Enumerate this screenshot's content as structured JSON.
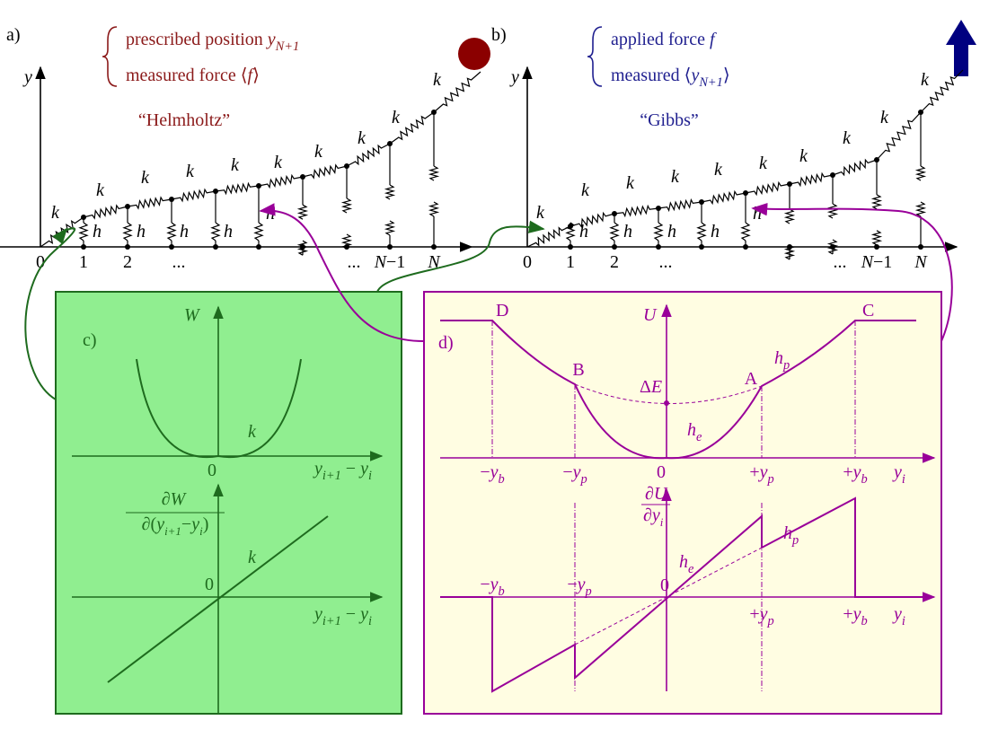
{
  "panel_a": {
    "label": "a)",
    "axis_label": [
      {
        "i": "y"
      }
    ],
    "legend": [
      [
        {
          "t": "prescribed position "
        },
        {
          "i": "y"
        },
        {
          "sub": "N+1"
        }
      ],
      [
        {
          "t": "measured force ⟨"
        },
        {
          "i": "f"
        },
        {
          "t": "⟩"
        }
      ]
    ],
    "title": "“Helmholtz”",
    "k_labels": [
      "k",
      "k",
      "k",
      "k",
      "k",
      "k",
      "k",
      "k",
      "k",
      "k"
    ],
    "h_labels": [
      "h",
      "h",
      "h",
      "h",
      "h"
    ],
    "ticks": [
      [
        {
          "t": "0"
        }
      ],
      [
        {
          "t": "1"
        }
      ],
      [
        {
          "t": "2"
        }
      ],
      [
        {
          "t": "..."
        }
      ],
      [
        {
          "t": "..."
        }
      ],
      [
        {
          "i": "N"
        },
        {
          "t": "−1"
        }
      ],
      [
        {
          "i": "N"
        }
      ]
    ]
  },
  "panel_b": {
    "label": "b)",
    "axis_label": [
      {
        "i": "y"
      }
    ],
    "legend": [
      [
        {
          "t": "applied force "
        },
        {
          "i": "f"
        }
      ],
      [
        {
          "t": "measured ⟨"
        },
        {
          "i": "y"
        },
        {
          "sub": "N+1"
        },
        {
          "t": "⟩"
        }
      ]
    ],
    "title": "“Gibbs”",
    "k_labels": [
      "k",
      "k",
      "k",
      "k",
      "k",
      "k",
      "k",
      "k",
      "k",
      "k"
    ],
    "h_labels": [
      "h",
      "h",
      "h",
      "h",
      "h"
    ],
    "ticks": [
      [
        {
          "t": "0"
        }
      ],
      [
        {
          "t": "1"
        }
      ],
      [
        {
          "t": "2"
        }
      ],
      [
        {
          "t": "..."
        }
      ],
      [
        {
          "t": "..."
        }
      ],
      [
        {
          "i": "N"
        },
        {
          "t": "−1"
        }
      ],
      [
        {
          "i": "N"
        }
      ]
    ]
  },
  "panel_c": {
    "label": "c)",
    "upper": {
      "axis_label": [
        {
          "i": "W"
        }
      ],
      "curve_label": [
        {
          "i": "k"
        }
      ],
      "origin": "0",
      "x_label": [
        {
          "i": "y"
        },
        {
          "sub": "i+1"
        },
        {
          "t": " − "
        },
        {
          "i": "y"
        },
        {
          "sub": "i"
        }
      ]
    },
    "lower": {
      "axis_num": [
        {
          "t": "∂"
        },
        {
          "i": "W"
        }
      ],
      "axis_den": [
        {
          "t": "∂("
        },
        {
          "i": "y"
        },
        {
          "sub": "i+1"
        },
        {
          "t": "−"
        },
        {
          "i": "y"
        },
        {
          "sub": "i"
        },
        {
          "t": ")"
        }
      ],
      "curve_label": [
        {
          "i": "k"
        }
      ],
      "origin": "0",
      "x_label": [
        {
          "i": "y"
        },
        {
          "sub": "i+1"
        },
        {
          "t": " − "
        },
        {
          "i": "y"
        },
        {
          "sub": "i"
        }
      ]
    }
  },
  "panel_d": {
    "label": "d)",
    "upper": {
      "axis_label": [
        {
          "i": "U"
        }
      ],
      "points": [
        "D",
        "C",
        "B",
        "A"
      ],
      "barrier": [
        {
          "t": "Δ"
        },
        {
          "i": "E"
        }
      ],
      "hp": [
        {
          "i": "h"
        },
        {
          "sub": "p"
        }
      ],
      "he": [
        {
          "i": "h"
        },
        {
          "sub": "e"
        }
      ],
      "origin": "0",
      "ticks": [
        [
          {
            "t": "−"
          },
          {
            "i": "y"
          },
          {
            "sub": "b"
          }
        ],
        [
          {
            "t": "−"
          },
          {
            "i": "y"
          },
          {
            "sub": "p"
          }
        ],
        [
          {
            "t": "+"
          },
          {
            "i": "y"
          },
          {
            "sub": "p"
          }
        ],
        [
          {
            "t": "+"
          },
          {
            "i": "y"
          },
          {
            "sub": "b"
          }
        ]
      ],
      "x_label": [
        {
          "i": "y"
        },
        {
          "sub": "i"
        }
      ]
    },
    "lower": {
      "axis_num": [
        {
          "t": "∂"
        },
        {
          "i": "U"
        }
      ],
      "axis_den": [
        {
          "t": "∂"
        },
        {
          "i": "y"
        },
        {
          "sub": "i"
        }
      ],
      "hp": [
        {
          "i": "h"
        },
        {
          "sub": "p"
        }
      ],
      "he": [
        {
          "i": "h"
        },
        {
          "sub": "e"
        }
      ],
      "origin": "0",
      "ticks": [
        [
          {
            "t": "−"
          },
          {
            "i": "y"
          },
          {
            "sub": "b"
          }
        ],
        [
          {
            "t": "−"
          },
          {
            "i": "y"
          },
          {
            "sub": "p"
          }
        ],
        [
          {
            "t": "+"
          },
          {
            "i": "y"
          },
          {
            "sub": "p"
          }
        ],
        [
          {
            "t": "+"
          },
          {
            "i": "y"
          },
          {
            "sub": "b"
          }
        ]
      ],
      "x_label": [
        {
          "i": "y"
        },
        {
          "sub": "i"
        }
      ]
    }
  }
}
